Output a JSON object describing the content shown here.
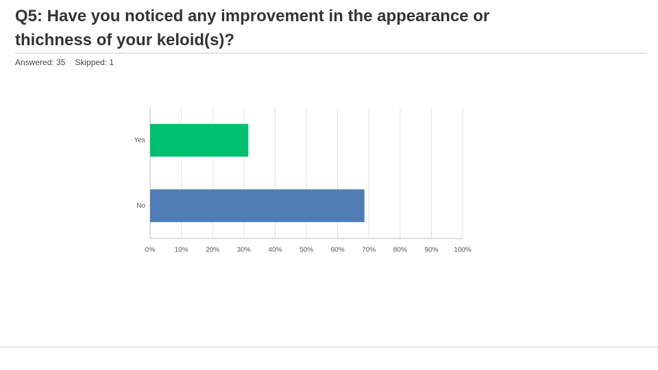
{
  "header": {
    "title": "Q5: Have you noticed any improvement in the appearance or thichness of your keloid(s)?",
    "answered": "Answered: 35",
    "skipped": "Skipped: 1"
  },
  "chart_data": {
    "type": "hbar",
    "categories": [
      "Yes",
      "No"
    ],
    "values": [
      31.43,
      68.57
    ],
    "colors": [
      "#00bf6f",
      "#4f7cb5"
    ],
    "xlim": [
      0,
      100
    ],
    "xticks": [
      {
        "value": 0,
        "label": "0%"
      },
      {
        "value": 10,
        "label": "10%"
      },
      {
        "value": 20,
        "label": "20%"
      },
      {
        "value": 30,
        "label": "30%"
      },
      {
        "value": 40,
        "label": "40%"
      },
      {
        "value": 50,
        "label": "50%"
      },
      {
        "value": 60,
        "label": "60%"
      },
      {
        "value": 70,
        "label": "70%"
      },
      {
        "value": 80,
        "label": "80%"
      },
      {
        "value": 90,
        "label": "90%"
      },
      {
        "value": 100,
        "label": "100%"
      }
    ],
    "grid": true
  }
}
